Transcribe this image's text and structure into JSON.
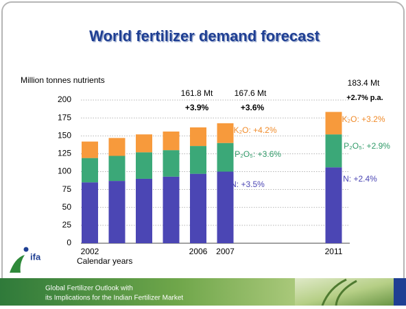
{
  "chart_data": {
    "type": "stacked-bar",
    "title": "World fertilizer demand forecast",
    "y_label": "Million tonnes nutrients",
    "x_label": "Calendar years",
    "categories": [
      "2002",
      null,
      null,
      null,
      "2006",
      "2007",
      null,
      null,
      null,
      "2011"
    ],
    "series": [
      {
        "color": "#4b46b4",
        "values": [
          85,
          87,
          90,
          93,
          97,
          100,
          null,
          null,
          null,
          106
        ]
      },
      {
        "color": "#3ba878",
        "values": [
          34,
          35,
          37,
          37,
          38.8,
          40,
          null,
          null,
          null,
          46
        ]
      },
      {
        "color": "#f79a3c",
        "values": [
          23,
          25,
          25,
          26,
          26,
          27.6,
          null,
          null,
          null,
          31.4
        ]
      }
    ],
    "ylim": [
      0,
      200
    ],
    "yticks": [
      0,
      25,
      50,
      75,
      100,
      125,
      150,
      175,
      200
    ],
    "grid": true,
    "annotations": [
      {
        "text": "161.8 Mt",
        "color": "#000000"
      },
      {
        "text": "+3.9%",
        "color": "#000000"
      },
      {
        "text": "167.6 Mt",
        "color": "#000000"
      },
      {
        "text": "+3.6%",
        "color": "#000000"
      },
      {
        "text": "183.4 Mt",
        "color": "#000000"
      },
      {
        "text": "+2.7% p.a.",
        "color": "#000000"
      },
      {
        "text": "K₂O: +4.2%",
        "color": "#f08a28"
      },
      {
        "text": "P₂O₅: +3.6%",
        "color": "#2f9a68"
      },
      {
        "text": "N: +3.5%",
        "color": "#4b46b4"
      },
      {
        "text": "K₂O: +3.2%",
        "color": "#f08a28"
      },
      {
        "text": "P₂O₅: +2.9%",
        "color": "#2f9a68"
      },
      {
        "text": "N: +2.4%",
        "color": "#4b46b4"
      }
    ]
  },
  "logo": "ifa",
  "footer": {
    "line1": "Global Fertilizer Outlook with",
    "line2": "its Implications for the Indian Fertilizer Market"
  }
}
